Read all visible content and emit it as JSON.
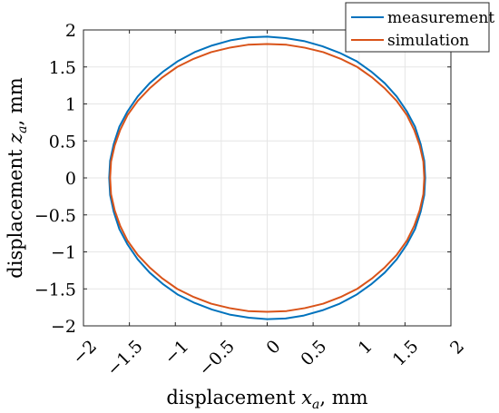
{
  "chart_data": {
    "type": "line",
    "xlabel": {
      "text": "displacement ",
      "var": "x",
      "sub": "a",
      "unit": ", mm"
    },
    "ylabel": {
      "text": "displacement ",
      "var": "z",
      "sub": "a",
      "unit": ", mm"
    },
    "xlim": [
      -2,
      2
    ],
    "ylim": [
      -2,
      2
    ],
    "xticks": [
      -2,
      -1.5,
      -1,
      -0.5,
      0,
      0.5,
      1,
      1.5,
      2
    ],
    "yticks": [
      -2,
      -1.5,
      -1,
      -0.5,
      0,
      0.5,
      1,
      1.5,
      2
    ],
    "xtick_labels": [
      "−2",
      "−1.5",
      "−1",
      "−0.5",
      "0",
      "0.5",
      "1",
      "1.5",
      "2"
    ],
    "ytick_labels": [
      "−2",
      "−1.5",
      "−1",
      "−0.5",
      "0",
      "0.5",
      "1",
      "1.5",
      "2"
    ],
    "grid": true,
    "legend_position": "top-right",
    "series": [
      {
        "name": "measurement",
        "color": "#0072BD",
        "x": [
          1.72,
          1.71,
          1.67,
          1.61,
          1.52,
          1.41,
          1.28,
          1.13,
          0.97,
          0.79,
          0.6,
          0.4,
          0.2,
          0.0,
          -0.2,
          -0.4,
          -0.6,
          -0.79,
          -0.97,
          -1.13,
          -1.28,
          -1.41,
          -1.52,
          -1.61,
          -1.67,
          -1.71,
          -1.72,
          -1.71,
          -1.67,
          -1.61,
          -1.52,
          -1.41,
          -1.28,
          -1.13,
          -0.97,
          -0.79,
          -0.6,
          -0.4,
          -0.2,
          0.0,
          0.2,
          0.4,
          0.6,
          0.79,
          0.97,
          1.13,
          1.28,
          1.41,
          1.52,
          1.61,
          1.67,
          1.71,
          1.72
        ],
        "y": [
          0.0,
          0.23,
          0.46,
          0.69,
          0.9,
          1.1,
          1.28,
          1.44,
          1.58,
          1.69,
          1.78,
          1.85,
          1.89,
          1.91,
          1.9,
          1.86,
          1.79,
          1.7,
          1.58,
          1.44,
          1.28,
          1.1,
          0.9,
          0.69,
          0.46,
          0.23,
          0.0,
          -0.23,
          -0.46,
          -0.69,
          -0.9,
          -1.1,
          -1.28,
          -1.44,
          -1.58,
          -1.69,
          -1.78,
          -1.85,
          -1.89,
          -1.91,
          -1.9,
          -1.86,
          -1.79,
          -1.7,
          -1.58,
          -1.44,
          -1.28,
          -1.1,
          -0.9,
          -0.69,
          -0.46,
          -0.23,
          0.0
        ]
      },
      {
        "name": "simulation",
        "color": "#D95319",
        "x": [
          1.71,
          1.7,
          1.66,
          1.6,
          1.52,
          1.41,
          1.28,
          1.14,
          0.98,
          0.8,
          0.61,
          0.41,
          0.21,
          0.0,
          -0.21,
          -0.41,
          -0.61,
          -0.8,
          -0.98,
          -1.14,
          -1.28,
          -1.41,
          -1.52,
          -1.6,
          -1.66,
          -1.7,
          -1.71,
          -1.7,
          -1.66,
          -1.6,
          -1.52,
          -1.41,
          -1.28,
          -1.14,
          -0.98,
          -0.8,
          -0.61,
          -0.41,
          -0.21,
          0.0,
          0.21,
          0.41,
          0.61,
          0.8,
          0.98,
          1.14,
          1.28,
          1.41,
          1.52,
          1.6,
          1.66,
          1.7,
          1.71
        ],
        "y": [
          0.0,
          0.22,
          0.44,
          0.65,
          0.85,
          1.04,
          1.21,
          1.36,
          1.5,
          1.61,
          1.7,
          1.76,
          1.8,
          1.81,
          1.8,
          1.76,
          1.7,
          1.61,
          1.5,
          1.36,
          1.21,
          1.04,
          0.85,
          0.65,
          0.44,
          0.22,
          0.0,
          -0.22,
          -0.44,
          -0.65,
          -0.85,
          -1.04,
          -1.21,
          -1.36,
          -1.5,
          -1.61,
          -1.7,
          -1.76,
          -1.8,
          -1.81,
          -1.8,
          -1.76,
          -1.7,
          -1.61,
          -1.5,
          -1.36,
          -1.21,
          -1.04,
          -0.85,
          -0.65,
          -0.44,
          -0.22,
          0.0
        ]
      }
    ]
  }
}
